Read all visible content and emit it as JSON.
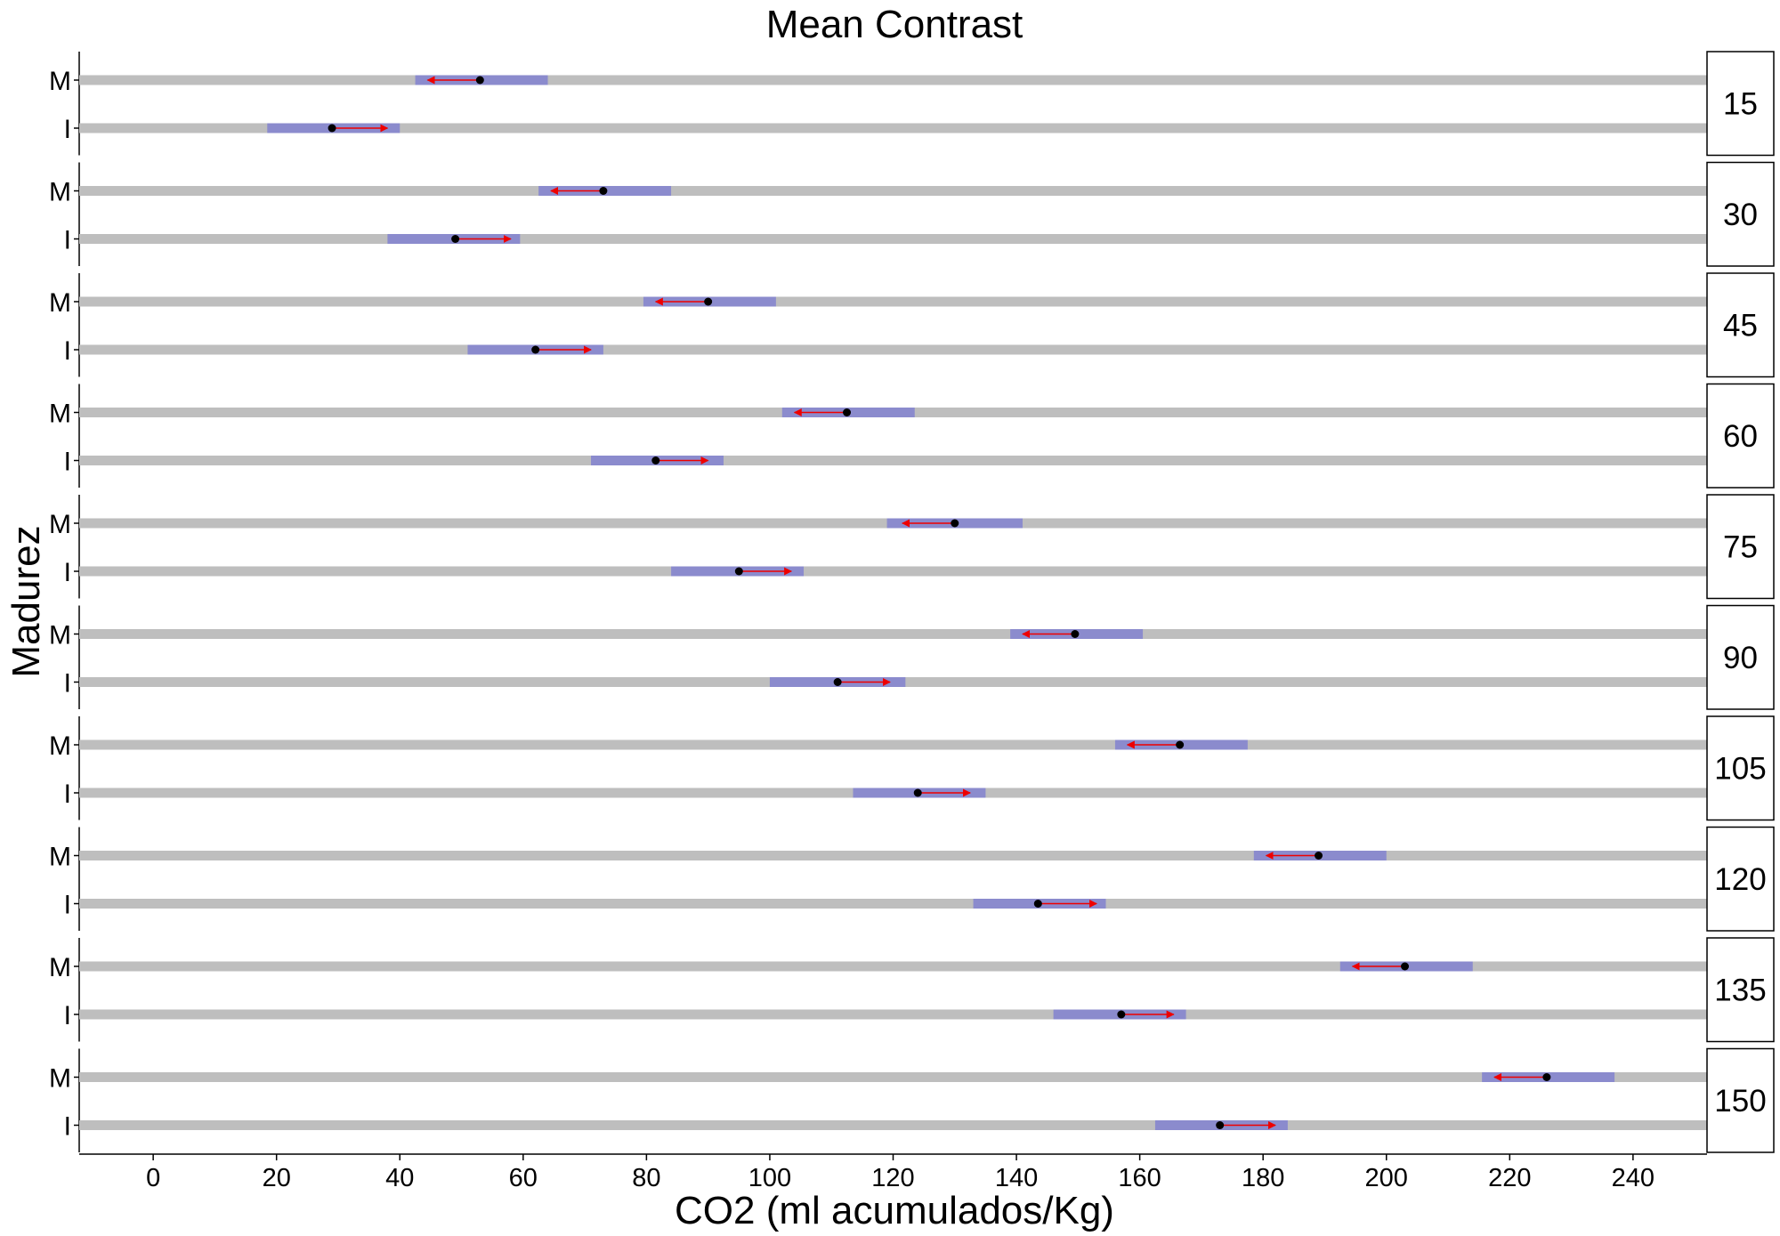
{
  "chart_data": {
    "type": "table",
    "title": "Mean Contrast",
    "xlabel": "CO2 (ml acumulados/Kg)",
    "ylabel": "Madurez",
    "xlim": [
      -12,
      252
    ],
    "x_ticks": [
      0,
      20,
      40,
      60,
      80,
      100,
      120,
      140,
      160,
      180,
      200,
      220,
      240
    ],
    "categories": [
      "M",
      "I"
    ],
    "colors": {
      "track": "#bebebe",
      "interval": "#8b8bcd",
      "arrow": "#ee0000",
      "point": "#000000",
      "strip_border": "#000000"
    },
    "panels": [
      {
        "label": "15",
        "rows": [
          {
            "group": "M",
            "mean": 53,
            "ci": [
              42.5,
              64
            ],
            "arrow_to": 44.5
          },
          {
            "group": "I",
            "mean": 29,
            "ci": [
              18.5,
              40
            ],
            "arrow_to": 38
          }
        ]
      },
      {
        "label": "30",
        "rows": [
          {
            "group": "M",
            "mean": 73,
            "ci": [
              62.5,
              84
            ],
            "arrow_to": 64.5
          },
          {
            "group": "I",
            "mean": 49,
            "ci": [
              38,
              59.5
            ],
            "arrow_to": 58
          }
        ]
      },
      {
        "label": "45",
        "rows": [
          {
            "group": "M",
            "mean": 90,
            "ci": [
              79.5,
              101
            ],
            "arrow_to": 81.5
          },
          {
            "group": "I",
            "mean": 62,
            "ci": [
              51,
              73
            ],
            "arrow_to": 71
          }
        ]
      },
      {
        "label": "60",
        "rows": [
          {
            "group": "M",
            "mean": 112.5,
            "ci": [
              102,
              123.5
            ],
            "arrow_to": 104
          },
          {
            "group": "I",
            "mean": 81.5,
            "ci": [
              71,
              92.5
            ],
            "arrow_to": 90
          }
        ]
      },
      {
        "label": "75",
        "rows": [
          {
            "group": "M",
            "mean": 130,
            "ci": [
              119,
              141
            ],
            "arrow_to": 121.5
          },
          {
            "group": "I",
            "mean": 95,
            "ci": [
              84,
              105.5
            ],
            "arrow_to": 103.5
          }
        ]
      },
      {
        "label": "90",
        "rows": [
          {
            "group": "M",
            "mean": 149.5,
            "ci": [
              139,
              160.5
            ],
            "arrow_to": 141
          },
          {
            "group": "I",
            "mean": 111,
            "ci": [
              100,
              122
            ],
            "arrow_to": 119.5
          }
        ]
      },
      {
        "label": "105",
        "rows": [
          {
            "group": "M",
            "mean": 166.5,
            "ci": [
              156,
              177.5
            ],
            "arrow_to": 158
          },
          {
            "group": "I",
            "mean": 124,
            "ci": [
              113.5,
              135
            ],
            "arrow_to": 132.5
          }
        ]
      },
      {
        "label": "120",
        "rows": [
          {
            "group": "M",
            "mean": 189,
            "ci": [
              178.5,
              200
            ],
            "arrow_to": 180.5
          },
          {
            "group": "I",
            "mean": 143.5,
            "ci": [
              133,
              154.5
            ],
            "arrow_to": 153
          }
        ]
      },
      {
        "label": "135",
        "rows": [
          {
            "group": "M",
            "mean": 203,
            "ci": [
              192.5,
              214
            ],
            "arrow_to": 194.5
          },
          {
            "group": "I",
            "mean": 157,
            "ci": [
              146,
              167.5
            ],
            "arrow_to": 165.5
          }
        ]
      },
      {
        "label": "150",
        "rows": [
          {
            "group": "M",
            "mean": 226,
            "ci": [
              215.5,
              237
            ],
            "arrow_to": 217.5
          },
          {
            "group": "I",
            "mean": 173,
            "ci": [
              162.5,
              184
            ],
            "arrow_to": 182
          }
        ]
      }
    ]
  }
}
